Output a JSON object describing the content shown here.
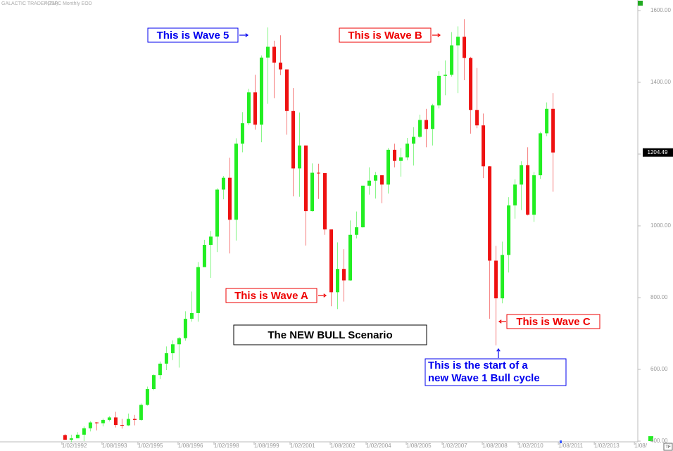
{
  "header": {
    "source": "GALACTIC TRADER(TM)",
    "symbol": "^GSPC Monthly EOD"
  },
  "chart_data": {
    "type": "candlestick",
    "x": [
      1992.125,
      1992.375,
      1992.625,
      1992.875,
      1993.125,
      1993.375,
      1993.625,
      1993.875,
      1994.125,
      1994.375,
      1994.625,
      1994.875,
      1995.125,
      1995.375,
      1995.625,
      1995.875,
      1996.125,
      1996.375,
      1996.625,
      1996.875,
      1997.125,
      1997.375,
      1997.625,
      1997.875,
      1998.125,
      1998.375,
      1998.625,
      1998.875,
      1999.125,
      1999.375,
      1999.625,
      1999.875,
      2000.125,
      2000.375,
      2000.625,
      2000.875,
      2001.125,
      2001.375,
      2001.625,
      2001.875,
      2002.125,
      2002.375,
      2002.625,
      2002.875,
      2003.125,
      2003.375,
      2003.625,
      2003.875,
      2004.125,
      2004.375,
      2004.625,
      2004.875,
      2005.125,
      2005.375,
      2005.625,
      2005.875,
      2006.125,
      2006.375,
      2006.625,
      2006.875,
      2007.125,
      2007.375,
      2007.625,
      2007.875,
      2008.125,
      2008.375,
      2008.625,
      2008.875,
      2009.125,
      2009.375,
      2009.625,
      2009.875,
      2010.125,
      2010.375,
      2010.625,
      2010.875,
      2011.125,
      2011.375
    ],
    "open": [
      417,
      404,
      408,
      418,
      436,
      452,
      450,
      459,
      466,
      445,
      444,
      462,
      459,
      501,
      545,
      584,
      616,
      645,
      670,
      687,
      741,
      757,
      885,
      947,
      970,
      1101,
      1134,
      1017,
      1229,
      1286,
      1372,
      1282,
      1469,
      1499,
      1455,
      1436,
      1320,
      1160,
      1224,
      1041,
      1148,
      1147,
      990,
      815,
      880,
      848,
      975,
      996,
      1112,
      1126,
      1141,
      1115,
      1212,
      1181,
      1191,
      1229,
      1248,
      1295,
      1270,
      1336,
      1418,
      1421,
      1503,
      1527,
      1468,
      1323,
      1280,
      1166,
      903,
      798,
      919,
      1057,
      1115,
      1169,
      1031,
      1141,
      1258,
      1326
    ],
    "high": [
      420,
      418,
      425,
      441,
      456,
      453,
      463,
      470,
      482,
      462,
      477,
      473,
      505,
      552,
      586,
      622,
      664,
      681,
      690,
      762,
      817,
      899,
      961,
      986,
      1105,
      1139,
      1190,
      1244,
      1317,
      1382,
      1421,
      1475,
      1553,
      1516,
      1531,
      1436,
      1384,
      1316,
      1224,
      1174,
      1173,
      1147,
      990,
      954,
      935,
      1015,
      1040,
      1112,
      1163,
      1150,
      1141,
      1217,
      1229,
      1217,
      1245,
      1275,
      1310,
      1326,
      1340,
      1431,
      1461,
      1540,
      1556,
      1576,
      1471,
      1440,
      1313,
      1167,
      944,
      956,
      1080,
      1130,
      1180,
      1219,
      1150,
      1262,
      1344,
      1370
    ],
    "low": [
      404,
      397,
      408,
      400,
      427,
      430,
      441,
      455,
      438,
      435,
      442,
      444,
      457,
      499,
      542,
      573,
      598,
      626,
      605,
      680,
      733,
      733,
      891,
      855,
      927,
      1074,
      923,
      959,
      1205,
      1281,
      1268,
      1233,
      1340,
      1356,
      1420,
      1254,
      1082,
      1081,
      945,
      1040,
      1075,
      975,
      776,
      768,
      789,
      847,
      965,
      995,
      1087,
      1076,
      1063,
      1090,
      1163,
      1137,
      1183,
      1168,
      1245,
      1219,
      1224,
      1327,
      1364,
      1416,
      1370,
      1406,
      1257,
      1272,
      1133,
      741,
      667,
      784,
      870,
      1020,
      1044,
      1029,
      1011,
      1131,
      1250,
      1095
    ],
    "close": [
      404,
      408,
      418,
      436,
      452,
      450,
      459,
      466,
      445,
      444,
      462,
      459,
      501,
      545,
      584,
      616,
      645,
      670,
      687,
      741,
      757,
      885,
      947,
      970,
      1101,
      1134,
      1017,
      1229,
      1286,
      1372,
      1282,
      1469,
      1499,
      1455,
      1436,
      1320,
      1160,
      1224,
      1041,
      1148,
      1147,
      990,
      815,
      880,
      848,
      975,
      996,
      1112,
      1126,
      1141,
      1115,
      1212,
      1181,
      1191,
      1229,
      1248,
      1295,
      1270,
      1336,
      1418,
      1421,
      1503,
      1527,
      1468,
      1323,
      1280,
      1166,
      903,
      798,
      919,
      1057,
      1115,
      1169,
      1031,
      1141,
      1258,
      1326,
      1204.49
    ],
    "up_color": "#22ee22",
    "down_color": "#ee1111",
    "xlim": [
      1989.56,
      2014.69
    ],
    "ylim": [
      400,
      1600
    ],
    "xticks": [
      {
        "value": 1992.0,
        "label": "1/02/1992"
      },
      {
        "value": 1993.583,
        "label": "1/08/1993"
      },
      {
        "value": 1995.0,
        "label": "1/02/1995"
      },
      {
        "value": 1996.583,
        "label": "1/08/1996"
      },
      {
        "value": 1998.0,
        "label": "1/02/1998"
      },
      {
        "value": 1999.583,
        "label": "1/08/1999"
      },
      {
        "value": 2001.0,
        "label": "1/02/2001"
      },
      {
        "value": 2002.583,
        "label": "1/08/2002"
      },
      {
        "value": 2004.0,
        "label": "1/02/2004"
      },
      {
        "value": 2005.583,
        "label": "1/08/2005"
      },
      {
        "value": 2007.0,
        "label": "1/02/2007"
      },
      {
        "value": 2008.583,
        "label": "1/08/2008"
      },
      {
        "value": 2010.0,
        "label": "1/02/2010"
      },
      {
        "value": 2011.583,
        "label": "1/08/2011"
      },
      {
        "value": 2013.0,
        "label": "1/02/2013"
      },
      {
        "value": 2014.583,
        "label": "1/08/"
      }
    ],
    "yticks": [
      {
        "value": 400,
        "label": "400.00"
      },
      {
        "value": 600,
        "label": "600.00"
      },
      {
        "value": 800,
        "label": "800.00"
      },
      {
        "value": 1000,
        "label": "1000.00"
      },
      {
        "value": 1200,
        "label": "1200.00"
      },
      {
        "value": 1400,
        "label": "1400.00"
      },
      {
        "value": 1600,
        "label": "1600.00"
      }
    ],
    "last_price": 1204.49,
    "annotations": [
      {
        "text": "This is Wave 5",
        "color": "#0000ee"
      },
      {
        "text": "This is Wave B",
        "color": "#ee0000"
      },
      {
        "text": "This is Wave A",
        "color": "#ee0000"
      },
      {
        "text": "This is Wave C",
        "color": "#ee0000"
      },
      {
        "text": "The NEW BULL Scenario",
        "color": "#000000"
      },
      {
        "text": [
          "This is the start of a",
          "new Wave 1 Bull cycle"
        ],
        "color": "#0000ee"
      }
    ]
  }
}
